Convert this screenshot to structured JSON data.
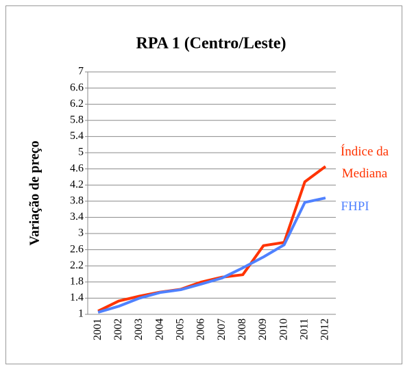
{
  "chart_data": {
    "type": "line",
    "title": "RPA 1 (Centro/Leste)",
    "y_label": "Variação de preço",
    "categories": [
      "2001",
      "2002",
      "2003",
      "2004",
      "2005",
      "2006",
      "2007",
      "2008",
      "2009",
      "2010",
      "2011",
      "2012"
    ],
    "series": [
      {
        "name": "Índice da Mediana",
        "color": "#ff3300",
        "values": [
          1.08,
          1.33,
          1.45,
          1.55,
          1.62,
          1.8,
          1.92,
          1.98,
          2.7,
          2.78,
          4.28,
          4.66
        ]
      },
      {
        "name": "FHPI",
        "color": "#4f81ff",
        "values": [
          1.05,
          1.2,
          1.4,
          1.54,
          1.61,
          1.75,
          1.9,
          2.15,
          2.42,
          2.72,
          3.77,
          3.88
        ]
      }
    ],
    "ylim": [
      1,
      7
    ],
    "yticks": [
      1,
      1.4,
      1.8,
      2.2,
      2.6,
      3,
      3.4,
      3.8,
      4.2,
      4.6,
      5,
      5.4,
      5.8,
      6.2,
      6.6,
      7
    ],
    "grid": true
  }
}
